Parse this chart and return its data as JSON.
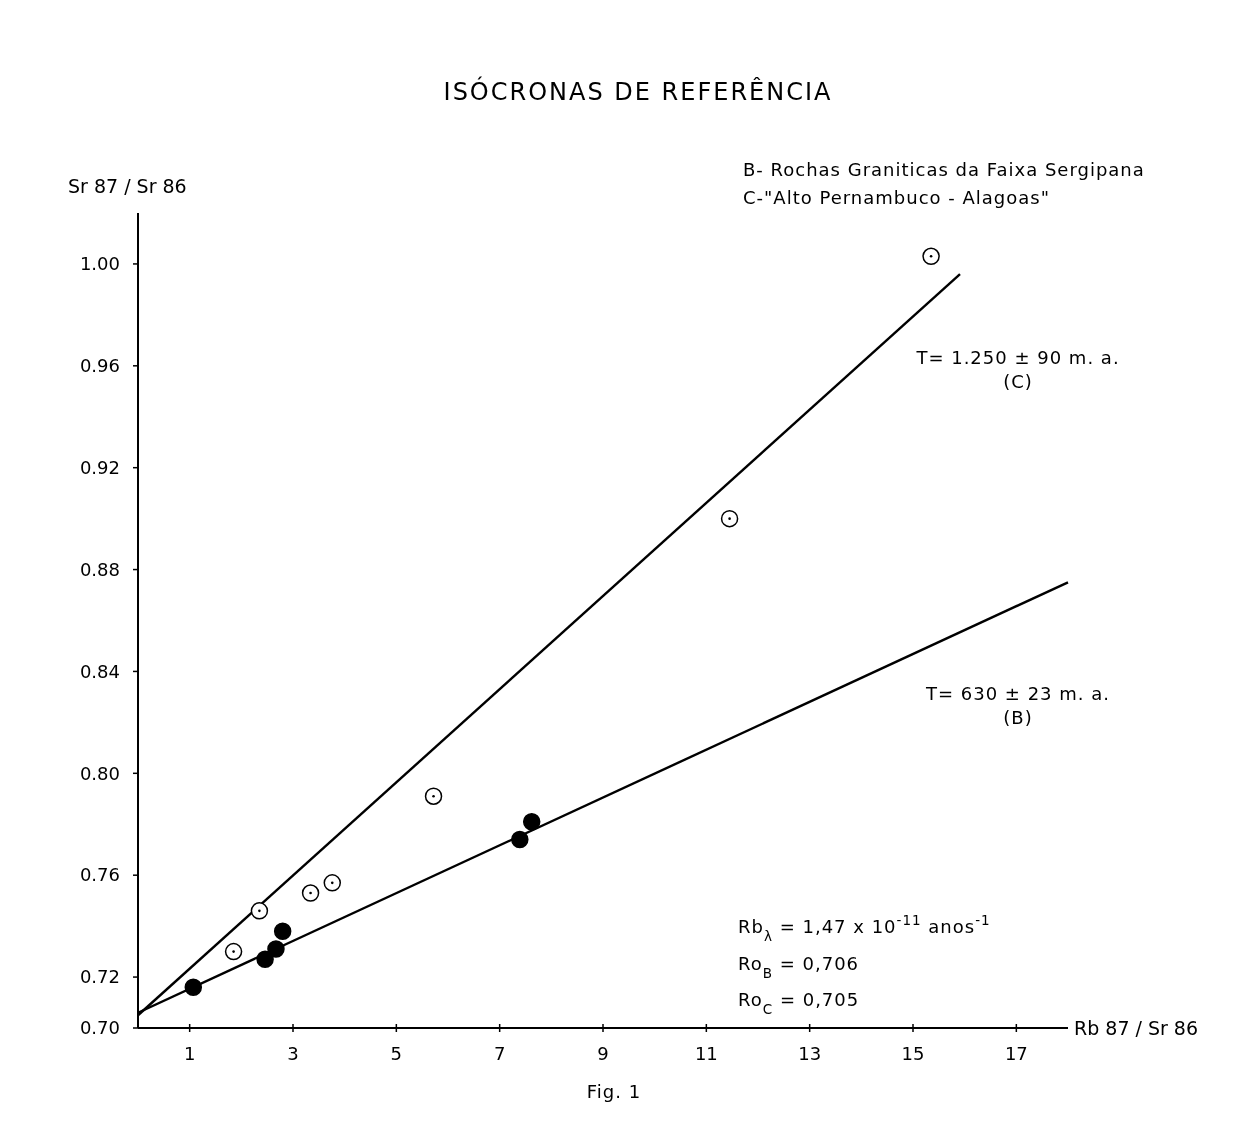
{
  "chart_data": {
    "type": "scatter",
    "title": "ISÓCRONAS DE REFERÊNCIA",
    "xlabel": "Rb 87 / Sr 86",
    "ylabel": "Sr 87 / Sr 86",
    "xlim": [
      0,
      18
    ],
    "ylim": [
      0.7,
      1.02
    ],
    "xticks": [
      1,
      3,
      5,
      7,
      9,
      11,
      13,
      15,
      17
    ],
    "yticks": [
      {
        "value": 0.7,
        "label": "0.70"
      },
      {
        "value": 0.72,
        "label": "0.72"
      },
      {
        "value": 0.76,
        "label": "0.76"
      },
      {
        "value": 0.8,
        "label": "0.80"
      },
      {
        "value": 0.84,
        "label": "0.84"
      },
      {
        "value": 0.88,
        "label": "0.88"
      },
      {
        "value": 0.92,
        "label": "0.92"
      },
      {
        "value": 0.96,
        "label": "0.96"
      },
      {
        "value": 1,
        "label": "1.00"
      }
    ],
    "series": [
      {
        "marker": "circle",
        "color": "#000000",
        "x": [
          1.07,
          2.46,
          2.67,
          2.8,
          7.39,
          7.62
        ],
        "values": [
          0.716,
          0.727,
          0.731,
          0.738,
          0.774,
          0.781
        ]
      },
      {
        "marker": "circle",
        "color": "#ffffff",
        "x": [
          1.85,
          2.35,
          3.34,
          3.76,
          5.72,
          11.45,
          15.35
        ],
        "values": [
          0.73,
          0.746,
          0.753,
          0.757,
          0.791,
          0.9,
          1.003
        ]
      },
      {
        "type": "line",
        "line_style": "solid",
        "color": "#000000",
        "x": [
          0,
          18
        ],
        "values": [
          0.706,
          0.875
        ]
      },
      {
        "type": "line",
        "line_style": "solid",
        "color": "#000000",
        "x": [
          0,
          15.91
        ],
        "values": [
          0.705,
          0.996
        ]
      }
    ],
    "annotations": [
      "T= 1.250 ± 90 m. a.\n(C)",
      "T=  630 ± 23 m. a.\n(B)",
      "B- Rochas Graniticas da Faixa Sergipana",
      "C-\"Alto Pernambuco - Alagoas\"",
      "Rb$_{λ}$ = 1,47 x 10$^{-11}$ anos$^{-1}$",
      "Ro$_{B}$ = 0,706",
      "Ro$_{C}$ = 0,705",
      "Fig. 1"
    ]
  }
}
